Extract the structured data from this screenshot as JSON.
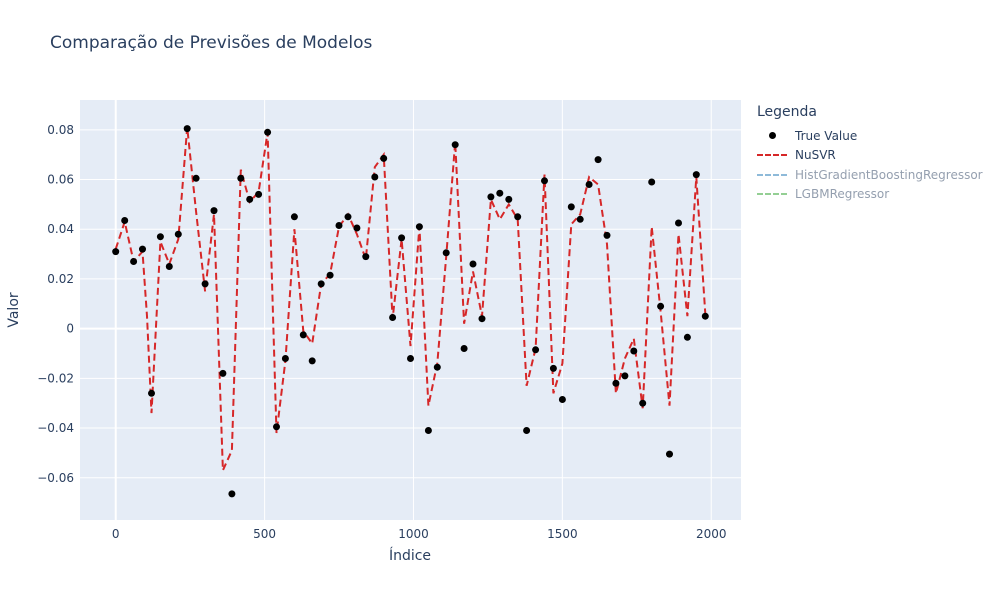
{
  "chart_data": {
    "type": "line",
    "title": "Comparação de Previsões de Modelos",
    "xlabel": "Índice",
    "ylabel": "Valor",
    "xlim": [
      -120,
      2100
    ],
    "ylim": [
      -0.077,
      0.092
    ],
    "xticks": [
      0,
      500,
      1000,
      1500,
      2000
    ],
    "yticks": [
      -0.06,
      -0.04,
      -0.02,
      0,
      0.02,
      0.04,
      0.06,
      0.08
    ],
    "ytick_labels": [
      "−0.06",
      "−0.04",
      "−0.02",
      "0",
      "0.02",
      "0.04",
      "0.06",
      "0.08"
    ],
    "legend_title": "Legenda",
    "legend_position": "right",
    "series": [
      {
        "name": "True Value",
        "mode": "markers",
        "color": "#000000",
        "x": [
          0,
          30,
          60,
          90,
          120,
          150,
          180,
          210,
          240,
          270,
          300,
          330,
          360,
          390,
          420,
          450,
          480,
          510,
          540,
          570,
          600,
          630,
          660,
          690,
          720,
          750,
          780,
          810,
          840,
          870,
          900,
          930,
          960,
          990,
          1020,
          1050,
          1080,
          1110,
          1140,
          1170,
          1200,
          1230,
          1260,
          1290,
          1320,
          1350,
          1380,
          1410,
          1440,
          1470,
          1500,
          1530,
          1560,
          1590,
          1620,
          1650,
          1680,
          1710,
          1740,
          1770,
          1800,
          1830,
          1860,
          1890,
          1920,
          1950,
          1980
        ],
        "y": [
          0.031,
          0.0435,
          0.027,
          0.032,
          -0.026,
          0.037,
          0.025,
          0.038,
          0.0805,
          0.0605,
          0.018,
          0.0475,
          -0.018,
          -0.0665,
          0.0605,
          0.052,
          0.054,
          0.079,
          -0.0395,
          -0.012,
          0.045,
          -0.0025,
          -0.013,
          0.018,
          0.0215,
          0.0415,
          0.045,
          0.0405,
          0.029,
          0.061,
          0.0685,
          0.0045,
          0.0365,
          -0.012,
          0.041,
          -0.041,
          -0.0155,
          0.0305,
          0.074,
          -0.008,
          0.026,
          0.004,
          0.053,
          0.0545,
          0.052,
          0.045,
          -0.041,
          -0.0085,
          0.0595,
          -0.016,
          -0.0285,
          0.049,
          0.044,
          0.058,
          0.068,
          0.0375,
          -0.022,
          -0.019,
          -0.009,
          -0.03,
          0.059,
          0.009,
          -0.0505,
          0.0425,
          -0.0035,
          0.062,
          0.005
        ]
      },
      {
        "name": "NuSVR",
        "mode": "lines",
        "dash": "dash",
        "color": "#d62728",
        "x": [
          0,
          30,
          60,
          90,
          105,
          120,
          150,
          180,
          210,
          240,
          270,
          300,
          330,
          360,
          390,
          420,
          450,
          480,
          510,
          540,
          570,
          600,
          630,
          660,
          690,
          720,
          750,
          780,
          810,
          840,
          870,
          900,
          930,
          960,
          990,
          1020,
          1050,
          1080,
          1110,
          1140,
          1170,
          1200,
          1230,
          1260,
          1290,
          1320,
          1350,
          1380,
          1410,
          1440,
          1470,
          1500,
          1530,
          1560,
          1590,
          1620,
          1650,
          1680,
          1710,
          1740,
          1770,
          1800,
          1830,
          1860,
          1890,
          1920,
          1950,
          1980
        ],
        "y": [
          0.032,
          0.043,
          0.027,
          0.031,
          0.005,
          -0.034,
          0.035,
          0.026,
          0.036,
          0.081,
          0.047,
          0.015,
          0.046,
          -0.057,
          -0.049,
          0.064,
          0.051,
          0.055,
          0.079,
          -0.042,
          -0.013,
          0.04,
          -0.001,
          -0.006,
          0.018,
          0.022,
          0.041,
          0.046,
          0.038,
          0.028,
          0.065,
          0.07,
          0.004,
          0.036,
          -0.007,
          0.041,
          -0.031,
          -0.014,
          0.029,
          0.075,
          0.002,
          0.023,
          0.005,
          0.052,
          0.044,
          0.05,
          0.044,
          -0.023,
          -0.008,
          0.062,
          -0.026,
          -0.014,
          0.042,
          0.046,
          0.061,
          0.058,
          0.034,
          -0.026,
          -0.012,
          -0.004,
          -0.032,
          0.041,
          0.007,
          -0.031,
          0.038,
          0.005,
          0.061,
          0.006
        ]
      },
      {
        "name": "HistGradientBoostingRegressor",
        "mode": "lines",
        "dash": "dash",
        "color": "#a6c8e4",
        "hidden": true
      },
      {
        "name": "LGBMRegressor",
        "mode": "lines",
        "dash": "dash",
        "color": "#a8dca0",
        "hidden": true
      }
    ]
  }
}
